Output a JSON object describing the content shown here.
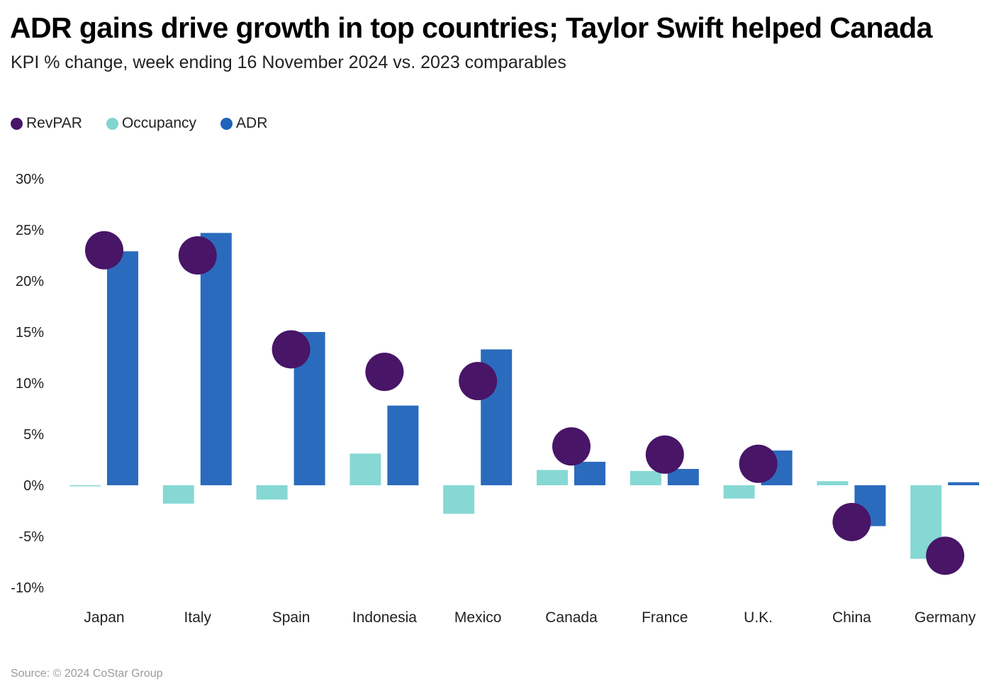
{
  "title": "ADR gains drive growth in top countries; Taylor Swift helped Canada",
  "subtitle": "KPI % change, week ending 16 November 2024 vs. 2023 comparables",
  "source": "Source: © 2024 CoStar Group",
  "legend": [
    {
      "name": "RevPAR",
      "color": "#481567"
    },
    {
      "name": "Occupancy",
      "color": "#7fd6d2"
    },
    {
      "name": "ADR",
      "color": "#1f64b8"
    }
  ],
  "chart_data": {
    "type": "bar",
    "ylim": [
      -10,
      30
    ],
    "yticks": [
      30,
      25,
      20,
      15,
      10,
      5,
      0,
      -5,
      -10
    ],
    "ytick_labels": [
      "30%",
      "25%",
      "20%",
      "15%",
      "10%",
      "5%",
      "0%",
      "-5%",
      "-10%"
    ],
    "categories": [
      "Japan",
      "Italy",
      "Spain",
      "Indonesia",
      "Mexico",
      "Canada",
      "France",
      "U.K.",
      "China",
      "Germany"
    ],
    "series": [
      {
        "name": "Occupancy",
        "mark": "bar",
        "color": "#86d8d4",
        "values": [
          -0.1,
          -1.8,
          -1.4,
          3.1,
          -2.8,
          1.5,
          1.4,
          -1.3,
          0.4,
          -7.2
        ]
      },
      {
        "name": "ADR",
        "mark": "bar",
        "color": "#2b6bbd",
        "values": [
          22.9,
          24.7,
          15.0,
          7.8,
          13.3,
          2.3,
          1.6,
          3.4,
          -4.0,
          0.3
        ]
      },
      {
        "name": "RevPAR",
        "mark": "dot",
        "color": "#481567",
        "values": [
          23.0,
          22.5,
          13.3,
          11.1,
          10.2,
          3.8,
          3.0,
          2.1,
          -3.6,
          -6.9
        ]
      }
    ],
    "grid": false,
    "legend_position": "top-left"
  }
}
